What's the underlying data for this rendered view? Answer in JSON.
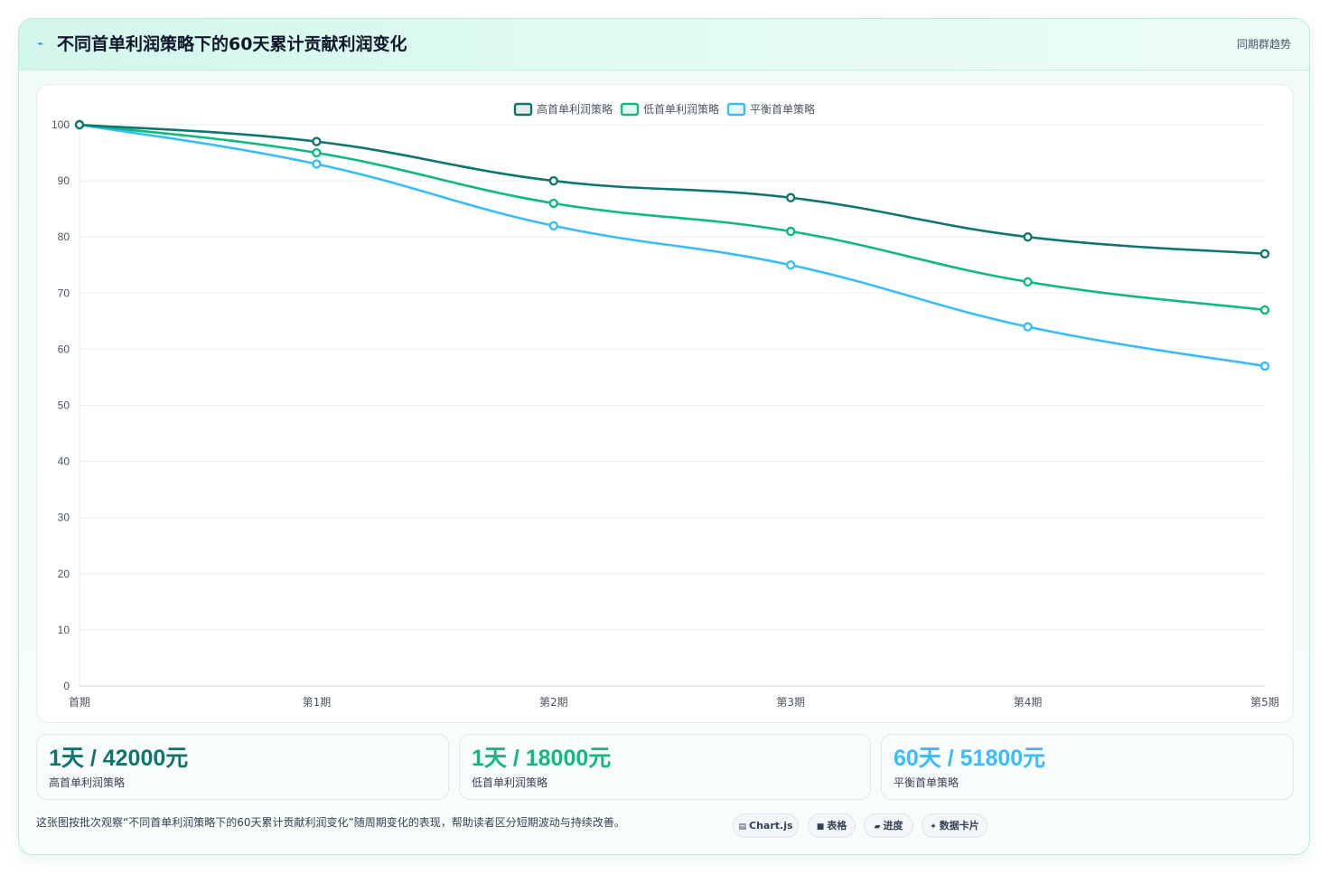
{
  "header": {
    "icon": "trend-icon",
    "title": "不同首单利润策略下的60天累计贡献利润变化",
    "meta": "同期群趋势"
  },
  "chart_data": {
    "type": "line",
    "x": [
      "首期",
      "第1期",
      "第2期",
      "第3期",
      "第4期",
      "第5期"
    ],
    "ylim": [
      0,
      100
    ],
    "yticks": [
      0,
      10,
      20,
      30,
      40,
      50,
      60,
      70,
      80,
      90,
      100
    ],
    "grid": true,
    "legend_position": "top",
    "series": [
      {
        "name": "高首单利润策略",
        "color": "#0f766e",
        "values": [
          100,
          97,
          90,
          87,
          80,
          77
        ]
      },
      {
        "name": "低首单利润策略",
        "color": "#10b981",
        "values": [
          100,
          95,
          86,
          81,
          72,
          67
        ]
      },
      {
        "name": "平衡首单策略",
        "color": "#38bdf8",
        "values": [
          100,
          93,
          82,
          75,
          64,
          57
        ]
      }
    ]
  },
  "kpis": [
    {
      "value": "1天 / 42000元",
      "label": "高首单利润策略",
      "color": "#0f766e"
    },
    {
      "value": "1天 / 18000元",
      "label": "低首单利润策略",
      "color": "#10b981"
    },
    {
      "value": "60天 / 51800元",
      "label": "平衡首单策略",
      "color": "#38bdf8"
    }
  ],
  "footnote": "这张图按批次观察“不同首单利润策略下的60天累计贡献利润变化”随周期变化的表现，帮助读者区分短期波动与持续改善。",
  "chips": [
    {
      "icon": "chart-icon",
      "glyph": "▤",
      "label": "Chart.js"
    },
    {
      "icon": "table-icon",
      "glyph": "■",
      "label": "表格"
    },
    {
      "icon": "progress-icon",
      "glyph": "▰",
      "label": "进度"
    },
    {
      "icon": "data-card-icon",
      "glyph": "✦",
      "label": "数据卡片"
    }
  ]
}
